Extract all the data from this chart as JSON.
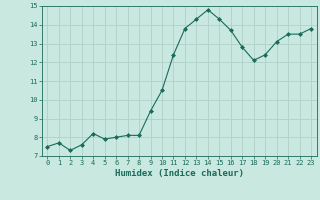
{
  "x": [
    0,
    1,
    2,
    3,
    4,
    5,
    6,
    7,
    8,
    9,
    10,
    11,
    12,
    13,
    14,
    15,
    16,
    17,
    18,
    19,
    20,
    21,
    22,
    23
  ],
  "y": [
    7.5,
    7.7,
    7.3,
    7.6,
    8.2,
    7.9,
    8.0,
    8.1,
    8.1,
    9.4,
    10.5,
    12.4,
    13.8,
    14.3,
    14.8,
    14.3,
    13.7,
    12.8,
    12.1,
    12.4,
    13.1,
    13.5,
    13.5,
    13.8
  ],
  "line_color": "#1a6b5a",
  "marker": "D",
  "marker_size": 2.0,
  "bg_color": "#c8e8e0",
  "grid_color": "#afd0c8",
  "xlabel": "Humidex (Indice chaleur)",
  "xlim": [
    -0.5,
    23.5
  ],
  "ylim": [
    7,
    15
  ],
  "yticks": [
    7,
    8,
    9,
    10,
    11,
    12,
    13,
    14,
    15
  ],
  "xticks": [
    0,
    1,
    2,
    3,
    4,
    5,
    6,
    7,
    8,
    9,
    10,
    11,
    12,
    13,
    14,
    15,
    16,
    17,
    18,
    19,
    20,
    21,
    22,
    23
  ],
  "tick_fontsize": 5.0,
  "xlabel_fontsize": 6.5
}
